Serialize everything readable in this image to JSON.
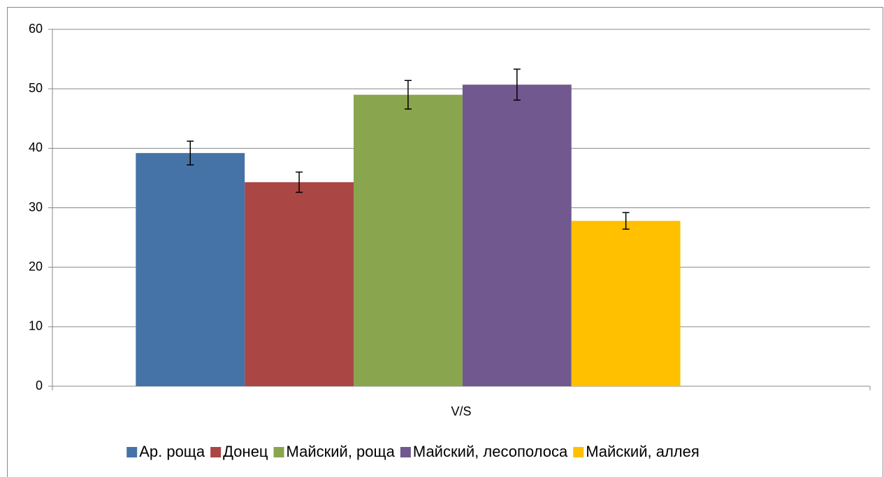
{
  "chart_data": {
    "type": "bar",
    "categories": [
      "V/S"
    ],
    "series": [
      {
        "name": "Ар. роща",
        "color": "#4573a7",
        "values": [
          39.2
        ],
        "errors": [
          2.0
        ]
      },
      {
        "name": "Донец",
        "color": "#aa4644",
        "values": [
          34.3
        ],
        "errors": [
          1.7
        ]
      },
      {
        "name": "Майский, роща",
        "color": "#89a54e",
        "values": [
          49.0
        ],
        "errors": [
          2.4
        ]
      },
      {
        "name": "Майский, лесополоса",
        "color": "#71588f",
        "values": [
          50.7
        ],
        "errors": [
          2.6
        ]
      },
      {
        "name": "Майский, аллея",
        "color": "#ffc000",
        "values": [
          27.8
        ],
        "errors": [
          1.4
        ]
      }
    ],
    "ylim": [
      0,
      60
    ],
    "yticks": [
      0,
      10,
      20,
      30,
      40,
      50,
      60
    ],
    "grid": true,
    "legend": "bottom"
  }
}
